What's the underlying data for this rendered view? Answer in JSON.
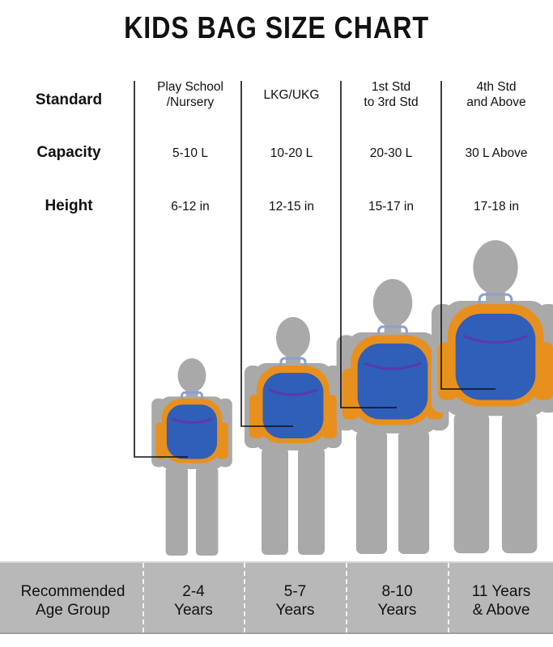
{
  "title": "KIDS BAG SIZE CHART",
  "row_labels": {
    "standard": "Standard",
    "capacity": "Capacity",
    "height": "Height",
    "age": "Recommended\nAge Group"
  },
  "columns": [
    {
      "standard": "Play School\n/Nursery",
      "capacity": "5-10 L",
      "height": "6-12 in",
      "age": "2-4\nYears"
    },
    {
      "standard": "LKG/UKG",
      "capacity": "10-20 L",
      "height": "12-15 in",
      "age": "5-7\nYears"
    },
    {
      "standard": "1st Std\nto 3rd Std",
      "capacity": "20-30 L",
      "height": "15-17 in",
      "age": "8-10\nYears"
    },
    {
      "standard": "4th Std\nand Above",
      "capacity": "30 L Above",
      "height": "17-18 in",
      "age": "11 Years\n& Above"
    }
  ],
  "colors": {
    "silhouette": "#a9a9a9",
    "bag_blue": "#2f5fb8",
    "bag_orange": "#e8901e",
    "zipper": "#5a3aa8",
    "band": "#b8b8b8"
  }
}
